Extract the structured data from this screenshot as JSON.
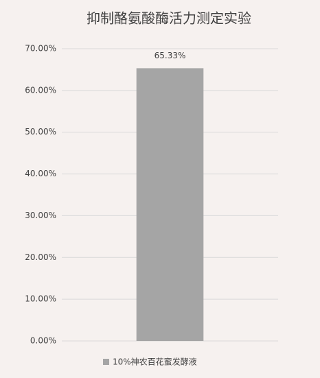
{
  "chart_data": {
    "type": "bar",
    "title": "抑制酪氨酸酶活力测定实验",
    "categories": [
      null
    ],
    "series": [
      {
        "name": "10%神农百花蜜发酵液",
        "color": "#a5a5a5",
        "values": [
          65.33
        ],
        "value_labels": [
          "65.33%"
        ]
      }
    ],
    "ylim": [
      0,
      70
    ],
    "yticks": [
      {
        "value": 0,
        "label": "0.00%"
      },
      {
        "value": 10,
        "label": "10.00%"
      },
      {
        "value": 20,
        "label": "20.00%"
      },
      {
        "value": 30,
        "label": "30.00%"
      },
      {
        "value": 40,
        "label": "40.00%"
      },
      {
        "value": 50,
        "label": "50.00%"
      },
      {
        "value": 60,
        "label": "60.00%"
      },
      {
        "value": 70,
        "label": "70.00%"
      }
    ],
    "grid": true,
    "legend": "bottom"
  }
}
